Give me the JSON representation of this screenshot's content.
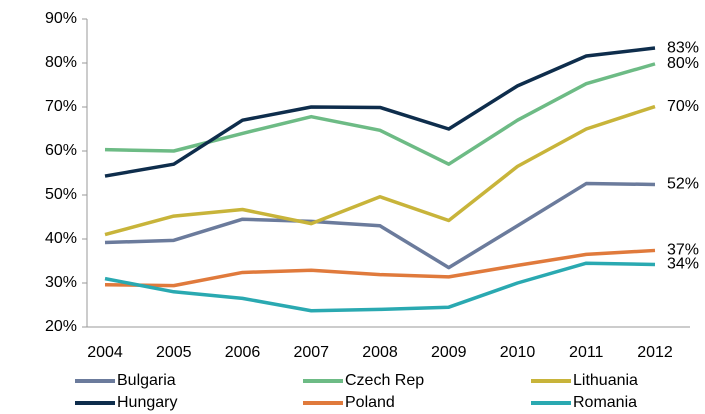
{
  "chart_data": {
    "type": "line",
    "categories": [
      "2004",
      "2005",
      "2006",
      "2007",
      "2008",
      "2009",
      "2010",
      "2011",
      "2012"
    ],
    "series": [
      {
        "name": "Bulgaria",
        "color": "#6b7b9c",
        "values": [
          39.2,
          39.7,
          44.5,
          44,
          43,
          33.5,
          43,
          52.6,
          52.4
        ],
        "value_labels": [
          null,
          null,
          null,
          null,
          null,
          null,
          null,
          null,
          "52%"
        ]
      },
      {
        "name": "Czech Rep",
        "color": "#6dbb85",
        "values": [
          60.3,
          60,
          64,
          67.8,
          64.7,
          57,
          67,
          75.3,
          79.8
        ],
        "value_labels": [
          null,
          null,
          null,
          null,
          null,
          null,
          null,
          null,
          "80%"
        ]
      },
      {
        "name": "Lithuania",
        "color": "#c8b43a",
        "values": [
          41,
          45.2,
          46.7,
          43.5,
          49.6,
          44.2,
          56.5,
          65,
          70.1
        ],
        "value_labels": [
          null,
          null,
          null,
          null,
          null,
          null,
          null,
          null,
          "70%"
        ]
      },
      {
        "name": "Hungary",
        "color": "#0e2d4c",
        "values": [
          54.3,
          57,
          67,
          70,
          69.9,
          65,
          74.8,
          81.6,
          83.4
        ],
        "value_labels": [
          null,
          null,
          null,
          null,
          null,
          null,
          null,
          null,
          "83%"
        ]
      },
      {
        "name": "Poland",
        "color": "#e07a3c",
        "values": [
          29.6,
          29.4,
          32.4,
          32.9,
          31.9,
          31.4,
          34,
          36.5,
          37.4
        ],
        "value_labels": [
          null,
          null,
          null,
          null,
          null,
          null,
          null,
          null,
          "37%"
        ]
      },
      {
        "name": "Romania",
        "color": "#2aa9b1",
        "values": [
          31,
          28,
          26.5,
          23.7,
          24,
          24.5,
          30,
          34.5,
          34.2
        ],
        "value_labels": [
          null,
          null,
          null,
          null,
          null,
          null,
          null,
          null,
          "34%"
        ]
      }
    ],
    "ylim": [
      20,
      90
    ],
    "yticks": [
      {
        "value": 20,
        "label": "20%"
      },
      {
        "value": 30,
        "label": "30%"
      },
      {
        "value": 40,
        "label": "40%"
      },
      {
        "value": 50,
        "label": "50%"
      },
      {
        "value": 60,
        "label": "60%"
      },
      {
        "value": 70,
        "label": "70%"
      },
      {
        "value": 80,
        "label": "80%"
      },
      {
        "value": 90,
        "label": "90%"
      }
    ],
    "grid": false
  }
}
